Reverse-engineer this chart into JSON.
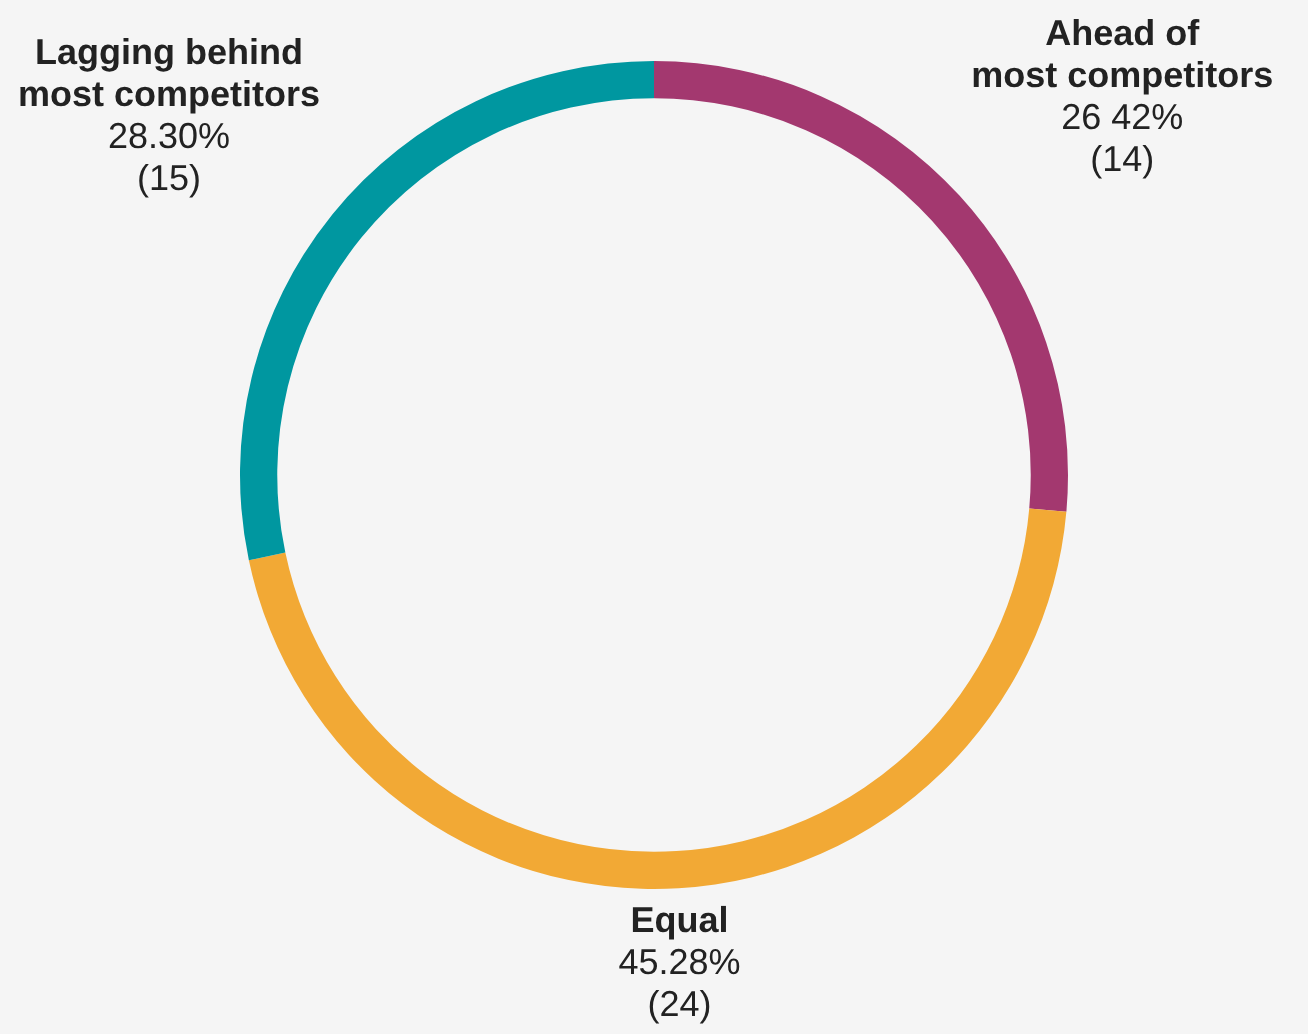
{
  "chart_data": {
    "type": "donut",
    "categories": [
      "Ahead of\nmost competitors",
      "Equal",
      "Lagging behind\nmost competitors"
    ],
    "values": [
      14,
      24,
      15
    ],
    "colors": [
      "#a3386f",
      "#f2a935",
      "#0097a0"
    ],
    "value_labels": [
      "26 42%\n(14)",
      "45.28%\n(24)",
      "28.30%\n(15)"
    ],
    "legend": false
  }
}
